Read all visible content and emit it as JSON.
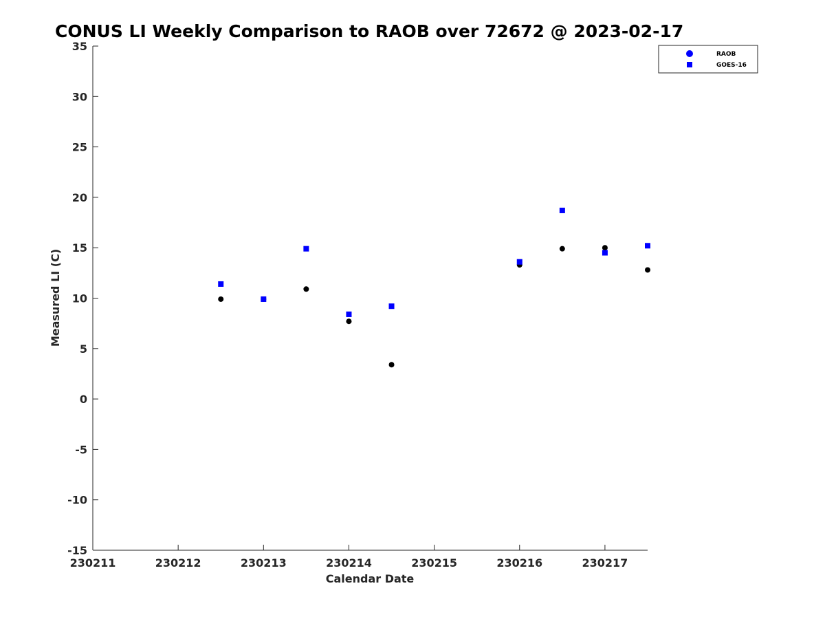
{
  "chart_data": {
    "type": "scatter",
    "title": "CONUS LI Weekly Comparison to RAOB over 72672 @ 2023-02-17",
    "xlabel": "Calendar Date",
    "ylabel": "Measured LI (C)",
    "xlim": [
      0,
      6.5
    ],
    "ylim": [
      -15,
      35
    ],
    "x_ticks": [
      {
        "value": 0,
        "label": "230211"
      },
      {
        "value": 1,
        "label": "230212"
      },
      {
        "value": 2,
        "label": "230213"
      },
      {
        "value": 3,
        "label": "230214"
      },
      {
        "value": 4,
        "label": "230215"
      },
      {
        "value": 5,
        "label": "230216"
      },
      {
        "value": 6,
        "label": "230217"
      }
    ],
    "y_ticks": [
      {
        "value": 35,
        "label": "35"
      },
      {
        "value": 30,
        "label": "30"
      },
      {
        "value": 25,
        "label": "25"
      },
      {
        "value": 20,
        "label": "20"
      },
      {
        "value": 15,
        "label": "15"
      },
      {
        "value": 10,
        "label": "10"
      },
      {
        "value": 5,
        "label": "5"
      },
      {
        "value": 0,
        "label": "0"
      },
      {
        "value": -5,
        "label": "-5"
      },
      {
        "value": -10,
        "label": "-10"
      },
      {
        "value": -15,
        "label": "-15"
      }
    ],
    "grid": false,
    "legend_position": "top-right",
    "series": [
      {
        "name": "RAOB",
        "marker": "circle",
        "color": "#000000",
        "legend_color": "#0000ff",
        "x": [
          1.5,
          2.0,
          2.5,
          3.0,
          3.5,
          5.0,
          5.5,
          6.0,
          6.5
        ],
        "y": [
          9.9,
          9.9,
          10.9,
          7.7,
          3.4,
          13.3,
          14.9,
          15.0,
          12.8
        ]
      },
      {
        "name": "GOES-16",
        "marker": "square",
        "color": "#0000ff",
        "legend_color": "#0000ff",
        "x": [
          1.5,
          2.0,
          2.5,
          3.0,
          3.5,
          5.0,
          5.5,
          6.0,
          6.5
        ],
        "y": [
          11.4,
          9.9,
          14.9,
          8.4,
          9.2,
          13.6,
          18.7,
          14.5,
          15.2
        ]
      }
    ]
  }
}
